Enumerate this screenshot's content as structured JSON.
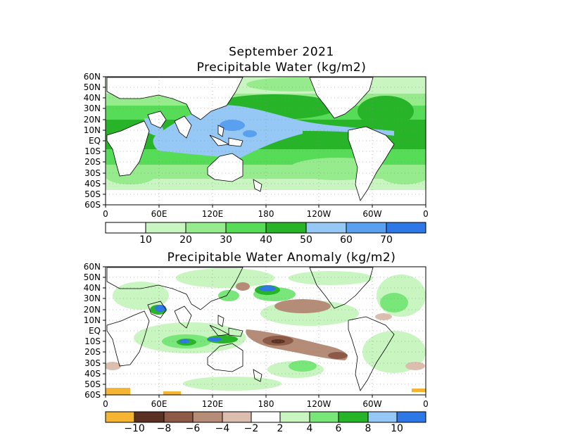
{
  "figure": {
    "main_title": "September 2021",
    "panel1_title": "Precipitable Water (kg/m2)",
    "panel2_title": "Precipitable Water Anomaly (kg/m2)"
  },
  "axes": {
    "lat_labels": [
      "60N",
      "50N",
      "40N",
      "30N",
      "20N",
      "10N",
      "EQ",
      "10S",
      "20S",
      "30S",
      "40S",
      "50S",
      "60S"
    ],
    "lon_labels": [
      "0",
      "60E",
      "120E",
      "180",
      "120W",
      "60W",
      "0"
    ]
  },
  "colorbar1": {
    "labels": [
      "10",
      "20",
      "30",
      "40",
      "50",
      "60",
      "70"
    ],
    "colors": [
      "#ffffff",
      "#c8f5c0",
      "#96eb8c",
      "#56dc56",
      "#28b428",
      "#96c8f5",
      "#5aa0f0",
      "#2d78e6"
    ]
  },
  "colorbar2": {
    "labels": [
      "−10",
      "−8",
      "−6",
      "−4",
      "−2",
      "2",
      "4",
      "6",
      "8",
      "10"
    ],
    "colors": [
      "#f5b432",
      "#5a3223",
      "#8c5a46",
      "#b48c78",
      "#dcbeaf",
      "#ffffff",
      "#c8f5c0",
      "#78e678",
      "#28b428",
      "#96c8f5",
      "#2d78e6"
    ]
  }
}
